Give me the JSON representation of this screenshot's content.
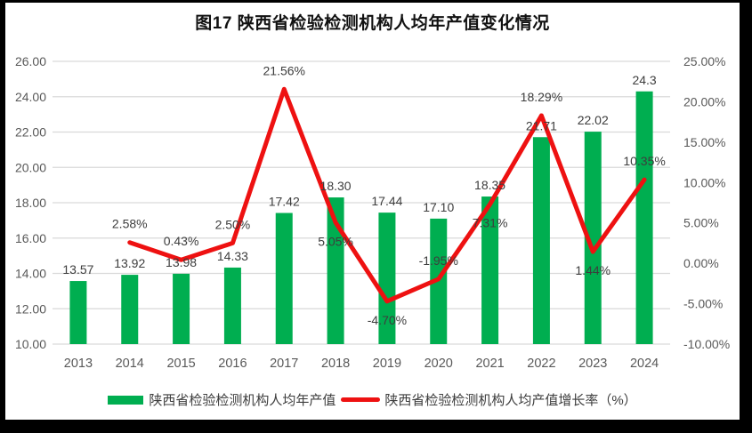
{
  "title": "图17 陕西省检验检测机构人均年产值变化情况",
  "colors": {
    "page_border": "#000000",
    "canvas_background": "#ffffff",
    "gridline": "#d9d9d9",
    "axis_text": "#595959",
    "data_label_text": "#3d3d3d",
    "bar_green": "#00ae50",
    "line_red": "#ee1111"
  },
  "chart_data": {
    "type": "bar+line combo",
    "title": "图17 陕西省检验检测机构人均年产值变化情况",
    "categories": [
      "2013",
      "2014",
      "2015",
      "2016",
      "2017",
      "2018",
      "2019",
      "2020",
      "2021",
      "2022",
      "2023",
      "2024"
    ],
    "series": [
      {
        "name": "陕西省检验检测机构人均年产值",
        "type": "bar",
        "axis": "left",
        "color": "#00ae50",
        "values": [
          13.57,
          13.92,
          13.98,
          14.33,
          17.42,
          18.3,
          17.44,
          17.1,
          18.35,
          21.71,
          22.02,
          24.3
        ],
        "data_labels": [
          "13.57",
          "13.92",
          "13.98",
          "14.33",
          "17.42",
          "18.30",
          "17.44",
          "17.10",
          "18.35",
          "21.71",
          "22.02",
          "24.3"
        ]
      },
      {
        "name": "陕西省检验检测机构人均产值增长率（%）",
        "type": "line",
        "axis": "right",
        "color": "#ee1111",
        "values": [
          null,
          2.58,
          0.43,
          2.5,
          21.56,
          5.05,
          -4.7,
          -1.95,
          7.31,
          18.29,
          1.44,
          10.35
        ],
        "data_labels": [
          null,
          "2.58%",
          "0.43%",
          "2.50%",
          "21.56%",
          "5.05%",
          "-4.70%",
          "-1.95%",
          "7.31%",
          "18.29%",
          "1.44%",
          "10.35%"
        ],
        "label_side": [
          null,
          "above",
          "above",
          "above",
          "above",
          "below",
          "below",
          "above",
          "below",
          "above",
          "below",
          "above"
        ]
      }
    ],
    "left_axis": {
      "min": 10,
      "max": 26,
      "step": 2,
      "tick_labels": [
        "26.00",
        "24.00",
        "22.00",
        "20.00",
        "18.00",
        "16.00",
        "14.00",
        "12.00",
        "10.00"
      ]
    },
    "right_axis": {
      "min": -10,
      "max": 25,
      "step": 5,
      "tick_labels": [
        "25.00%",
        "20.00%",
        "15.00%",
        "10.00%",
        "5.00%",
        "0.00%",
        "-5.00%",
        "-10.00%"
      ]
    },
    "grid": true,
    "legend_position": "bottom"
  }
}
